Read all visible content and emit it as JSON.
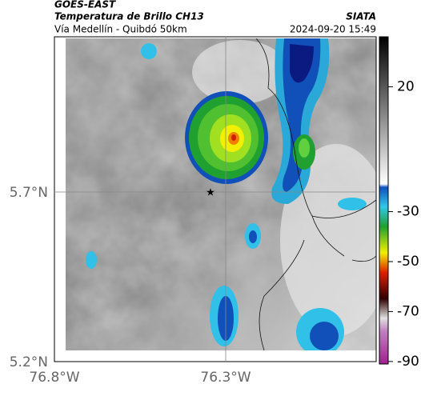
{
  "header": {
    "satellite": "GOES-EAST",
    "product": "Temperatura de Brillo CH13",
    "source": "SIATA",
    "route": "Vía Medellín - Quibdó 50km",
    "datetime": "2024-09-20 15:49"
  },
  "map": {
    "lat_labels": [
      "5.7°N",
      "5.2°N"
    ],
    "lon_labels": [
      "76.8°W",
      "76.3°W"
    ]
  },
  "colorbar": {
    "lim": [
      40,
      -91
    ],
    "ticks": [
      20,
      -30,
      -50,
      -70,
      -90
    ]
  }
}
